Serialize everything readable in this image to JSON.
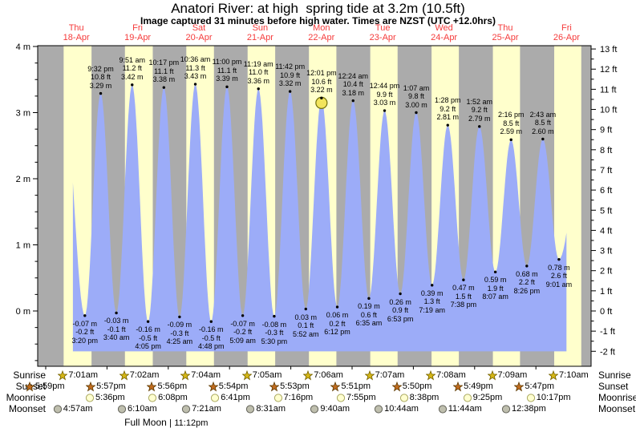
{
  "title": "Anatori River: at high  spring tide at 3.2m (10.5ft)",
  "subtitle": "Image captured 31 minutes before high water. Times are NZST (UTC +12.0hrs)",
  "days": [
    {
      "name": "Thu",
      "date": "18-Apr"
    },
    {
      "name": "Fri",
      "date": "19-Apr"
    },
    {
      "name": "Sat",
      "date": "20-Apr"
    },
    {
      "name": "Sun",
      "date": "21-Apr"
    },
    {
      "name": "Mon",
      "date": "22-Apr"
    },
    {
      "name": "Tue",
      "date": "23-Apr"
    },
    {
      "name": "Wed",
      "date": "24-Apr"
    },
    {
      "name": "Thu",
      "date": "25-Apr"
    },
    {
      "name": "Fri",
      "date": "26-Apr"
    }
  ],
  "axis_left": {
    "unit": "m",
    "ticks": [
      {
        "v": 4,
        "label": "4 m"
      },
      {
        "v": 3,
        "label": "3 m"
      },
      {
        "v": 2,
        "label": "2 m"
      },
      {
        "v": 1,
        "label": "1 m"
      },
      {
        "v": 0,
        "label": "0 m"
      }
    ]
  },
  "axis_right": {
    "unit": "ft",
    "ticks": [
      {
        "v": 13,
        "label": "13 ft"
      },
      {
        "v": 12,
        "label": "12 ft"
      },
      {
        "v": 11,
        "label": "11 ft"
      },
      {
        "v": 10,
        "label": "10 ft"
      },
      {
        "v": 9,
        "label": "9 ft"
      },
      {
        "v": 8,
        "label": "8 ft"
      },
      {
        "v": 7,
        "label": "7 ft"
      },
      {
        "v": 6,
        "label": "6 ft"
      },
      {
        "v": 5,
        "label": "5 ft"
      },
      {
        "v": 4,
        "label": "4 ft"
      },
      {
        "v": 3,
        "label": "3 ft"
      },
      {
        "v": 2,
        "label": "2 ft"
      },
      {
        "v": 1,
        "label": "1 ft"
      },
      {
        "v": 0,
        "label": "0 ft"
      },
      {
        "v": -1,
        "label": "-1 ft"
      },
      {
        "v": -2,
        "label": "-2 ft"
      }
    ]
  },
  "chart_data": {
    "type": "area",
    "title": "Anatori River tide height",
    "xlabel": "days Thu 18-Apr to Fri 26-Apr (hours from Thu 18-Apr 00:00 NZST)",
    "ylabel": "tide height (m left, ft right)",
    "ylim_m": [
      -0.85,
      4.0
    ],
    "legend": "none",
    "grid": false,
    "high_tides": [
      {
        "time": "9:32 pm",
        "ft": "10.8 ft",
        "m": "3.29 m",
        "t": 21.53,
        "v": 3.29
      },
      {
        "time": "9:51 am",
        "ft": "11.2 ft",
        "m": "3.42 m",
        "t": 33.85,
        "v": 3.42
      },
      {
        "time": "10:17 pm",
        "ft": "11.1 ft",
        "m": "3.38 m",
        "t": 46.28,
        "v": 3.38
      },
      {
        "time": "10:36 am",
        "ft": "11.3 ft",
        "m": "3.43 m",
        "t": 58.6,
        "v": 3.43
      },
      {
        "time": "11:00 pm",
        "ft": "11.1 ft",
        "m": "3.39 m",
        "t": 71.0,
        "v": 3.39
      },
      {
        "time": "11:19 am",
        "ft": "11.0 ft",
        "m": "3.36 m",
        "t": 83.32,
        "v": 3.36
      },
      {
        "time": "11:42 pm",
        "ft": "10.9 ft",
        "m": "3.32 m",
        "t": 95.7,
        "v": 3.32
      },
      {
        "time": "12:01 pm",
        "ft": "10.6 ft",
        "m": "3.22 m",
        "t": 108.02,
        "v": 3.22,
        "current": true
      },
      {
        "time": "12:24 am",
        "ft": "10.4 ft",
        "m": "3.18 m",
        "t": 120.4,
        "v": 3.18
      },
      {
        "time": "12:44 pm",
        "ft": "9.9 ft",
        "m": "3.03 m",
        "t": 132.73,
        "v": 3.03
      },
      {
        "time": "1:07 am",
        "ft": "9.8 ft",
        "m": "3.00 m",
        "t": 145.12,
        "v": 3.0
      },
      {
        "time": "1:28 pm",
        "ft": "9.2 ft",
        "m": "2.81 m",
        "t": 157.47,
        "v": 2.81
      },
      {
        "time": "1:52 am",
        "ft": "9.2 ft",
        "m": "2.79 m",
        "t": 169.87,
        "v": 2.79
      },
      {
        "time": "2:16 pm",
        "ft": "8.5 ft",
        "m": "2.59 m",
        "t": 182.27,
        "v": 2.59
      },
      {
        "time": "2:43 am",
        "ft": "8.5 ft",
        "m": "2.60 m",
        "t": 194.72,
        "v": 2.6
      }
    ],
    "low_tides": [
      {
        "m": "-0.07 m",
        "ft": "-0.2 ft",
        "time": "3:20 pm",
        "t": 15.33,
        "v": -0.07
      },
      {
        "m": "-0.03 m",
        "ft": "-0.1 ft",
        "time": "3:40 am",
        "t": 27.67,
        "v": -0.03
      },
      {
        "m": "-0.16 m",
        "ft": "-0.5 ft",
        "time": "4:05 pm",
        "t": 40.08,
        "v": -0.16
      },
      {
        "m": "-0.09 m",
        "ft": "-0.3 ft",
        "time": "4:25 am",
        "t": 52.42,
        "v": -0.09
      },
      {
        "m": "-0.16 m",
        "ft": "-0.5 ft",
        "time": "4:48 pm",
        "t": 64.8,
        "v": -0.16
      },
      {
        "m": "-0.07 m",
        "ft": "-0.2 ft",
        "time": "5:09 am",
        "t": 77.15,
        "v": -0.07
      },
      {
        "m": "-0.08 m",
        "ft": "-0.3 ft",
        "time": "5:30 pm",
        "t": 89.5,
        "v": -0.08
      },
      {
        "m": "0.03 m",
        "ft": "0.1 ft",
        "time": "5:52 am",
        "t": 101.87,
        "v": 0.03
      },
      {
        "m": "0.06 m",
        "ft": "0.2 ft",
        "time": "6:12 pm",
        "t": 114.2,
        "v": 0.06
      },
      {
        "m": "0.19 m",
        "ft": "0.6 ft",
        "time": "6:35 am",
        "t": 126.58,
        "v": 0.19
      },
      {
        "m": "0.26 m",
        "ft": "0.9 ft",
        "time": "6:53 pm",
        "t": 138.88,
        "v": 0.26
      },
      {
        "m": "0.39 m",
        "ft": "1.3 ft",
        "time": "7:19 am",
        "t": 151.32,
        "v": 0.39
      },
      {
        "m": "0.47 m",
        "ft": "1.5 ft",
        "time": "7:38 pm",
        "t": 163.63,
        "v": 0.47
      },
      {
        "m": "0.59 m",
        "ft": "1.9 ft",
        "time": "8:07 am",
        "t": 176.12,
        "v": 0.59
      },
      {
        "m": "0.68 m",
        "ft": "2.2 ft",
        "time": "8:26 pm",
        "t": 188.43,
        "v": 0.68
      },
      {
        "m": "0.78 m",
        "ft": "2.6 ft",
        "time": "9:01 am",
        "t": 201.02,
        "v": 0.78
      }
    ],
    "curve_hints": {
      "virtual_pre_high": {
        "t": 7.0,
        "v": 3.3
      },
      "virtual_post_high": {
        "t": 210.5,
        "v": 2.6
      },
      "draw_start_t": 10.4,
      "draw_end_t": 204.2,
      "baseline_m": -0.61,
      "last_sunset_t": 209.77
    },
    "colors": {
      "day_band": "#ffffcc",
      "night_band": "#ababab",
      "tide_fill": "#9cacf8",
      "marker_fill": "#f2e45c",
      "marker_stroke": "#72700a",
      "day_label_red": "#f53b3b",
      "sunrise_star": "#d4b616",
      "sunrise_star_stroke": "#756200",
      "sunset_star": "#bf6b1f",
      "sunset_star_stroke": "#5e3a00",
      "moonrise_fill": "#ffffd0",
      "moonrise_stroke": "#aaa860",
      "moonset_fill": "#bfbfae",
      "moonset_stroke": "#63635a"
    }
  },
  "sun_moon": {
    "left_labels": [
      "Sunrise",
      "Sunset",
      "Moonrise",
      "Moonset"
    ],
    "right_labels": [
      "Sunrise",
      "Sunset",
      "Moonrise",
      "Moonset"
    ],
    "sunrise": [
      {
        "time": "7:01am",
        "t": 7.02
      },
      {
        "time": "7:02am",
        "t": 31.03
      },
      {
        "time": "7:04am",
        "t": 55.07
      },
      {
        "time": "7:05am",
        "t": 79.08
      },
      {
        "time": "7:06am",
        "t": 103.1
      },
      {
        "time": "7:07am",
        "t": 127.12
      },
      {
        "time": "7:08am",
        "t": 151.13
      },
      {
        "time": "7:09am",
        "t": 175.15
      },
      {
        "time": "7:10am",
        "t": 199.17
      }
    ],
    "sunset": [
      {
        "time": "5:59pm",
        "t": -6.02
      },
      {
        "time": "5:57pm",
        "t": 17.95
      },
      {
        "time": "5:56pm",
        "t": 41.93
      },
      {
        "time": "5:54pm",
        "t": 65.9
      },
      {
        "time": "5:53pm",
        "t": 89.88
      },
      {
        "time": "5:51pm",
        "t": 113.85
      },
      {
        "time": "5:50pm",
        "t": 137.83
      },
      {
        "time": "5:49pm",
        "t": 161.82
      },
      {
        "time": "5:47pm",
        "t": 185.78
      }
    ],
    "moonrise": [
      {
        "time": "5:36pm",
        "t": 17.6
      },
      {
        "time": "6:08pm",
        "t": 42.13
      },
      {
        "time": "6:41pm",
        "t": 66.68
      },
      {
        "time": "7:16pm",
        "t": 91.27
      },
      {
        "time": "7:55pm",
        "t": 115.92
      },
      {
        "time": "8:38pm",
        "t": 140.63
      },
      {
        "time": "9:25pm",
        "t": 165.42
      },
      {
        "time": "10:17pm",
        "t": 190.28
      }
    ],
    "moonset": [
      {
        "time": "4:57am",
        "t": 4.95
      },
      {
        "time": "6:10am",
        "t": 30.17
      },
      {
        "time": "7:21am",
        "t": 55.35
      },
      {
        "time": "8:31am",
        "t": 80.52
      },
      {
        "time": "9:40am",
        "t": 105.67
      },
      {
        "time": "10:44am",
        "t": 130.73
      },
      {
        "time": "11:44am",
        "t": 155.73
      },
      {
        "time": "12:38pm",
        "t": 180.63
      }
    ]
  },
  "footer": {
    "full_moon": "Full Moon",
    "divider": "|",
    "time": "11:12pm",
    "t": 47.2
  }
}
